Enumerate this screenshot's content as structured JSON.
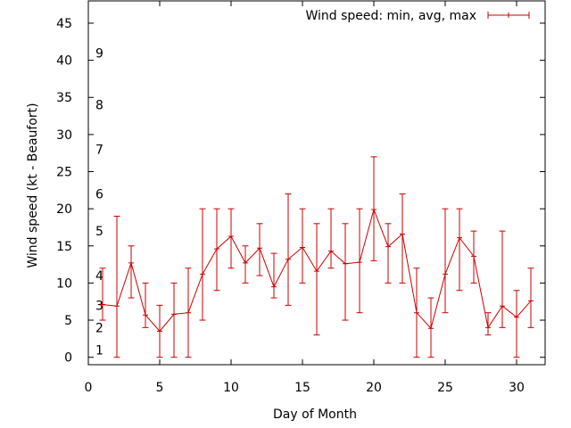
{
  "chart_data": {
    "type": "line",
    "title": "",
    "xlabel": "Day of Month",
    "ylabel": "Wind speed (kt - Beaufort)",
    "xlim": [
      0,
      32
    ],
    "ylim": [
      -1,
      48
    ],
    "x_ticks": [
      0,
      5,
      10,
      15,
      20,
      25,
      30
    ],
    "y_ticks": [
      0,
      5,
      10,
      15,
      20,
      25,
      30,
      35,
      40,
      45
    ],
    "beaufort_labels": [
      {
        "label": "1",
        "y": 1
      },
      {
        "label": "2",
        "y": 4
      },
      {
        "label": "3",
        "y": 7
      },
      {
        "label": "4",
        "y": 11
      },
      {
        "label": "5",
        "y": 17
      },
      {
        "label": "6",
        "y": 22
      },
      {
        "label": "7",
        "y": 28
      },
      {
        "label": "8",
        "y": 34
      },
      {
        "label": "9",
        "y": 41
      }
    ],
    "legend": {
      "label": "Wind speed: min, avg, max",
      "placement": "top-right"
    },
    "grid": false,
    "series": [
      {
        "name": "Wind speed: min, avg, max",
        "color": "#cc0000",
        "x": [
          1,
          2,
          3,
          4,
          5,
          6,
          7,
          8,
          9,
          10,
          11,
          12,
          13,
          14,
          15,
          16,
          17,
          18,
          19,
          20,
          21,
          22,
          23,
          24,
          25,
          26,
          27,
          28,
          29,
          30,
          31
        ],
        "avg": [
          7.1,
          6.9,
          12.7,
          5.7,
          3.5,
          5.8,
          6,
          11.2,
          14.6,
          16.3,
          12.7,
          14.7,
          9.5,
          13.2,
          14.8,
          11.6,
          14.3,
          12.6,
          12.8,
          19.9,
          14.9,
          16.6,
          6,
          3.9,
          11.2,
          16.1,
          13.6,
          4,
          6.9,
          5.4,
          7.6
        ],
        "min": [
          5,
          0,
          8,
          4,
          0,
          0,
          0,
          5,
          9,
          12,
          10,
          11,
          8,
          7,
          10,
          3,
          12,
          5,
          6,
          13,
          10,
          10,
          0,
          0,
          6,
          9,
          10,
          3,
          4,
          0,
          4
        ],
        "max": [
          12,
          19,
          15,
          10,
          7,
          10,
          12,
          20,
          20,
          20,
          15,
          18,
          14,
          22,
          20,
          18,
          20,
          18,
          20,
          27,
          18,
          22,
          12,
          8,
          20,
          20,
          17,
          6,
          17,
          9,
          12
        ]
      }
    ]
  }
}
